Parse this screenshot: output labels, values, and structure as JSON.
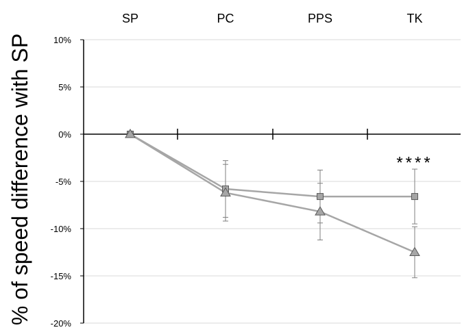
{
  "chart_data": {
    "type": "line",
    "categories": [
      "SP",
      "PC",
      "PPS",
      "TK"
    ],
    "ylabel": "% of speed difference with SP",
    "ylim": [
      -20,
      10
    ],
    "yticks": [
      10,
      5,
      0,
      -5,
      -10,
      -15,
      -20
    ],
    "ytick_labels": [
      "10%",
      "5%",
      "0%",
      "-5%",
      "-10%",
      "-15%",
      "-20%"
    ],
    "grid": true,
    "series": [
      {
        "marker": "square",
        "values": [
          0,
          -5.8,
          -6.6,
          -6.6
        ],
        "error": [
          0,
          3.0,
          2.8,
          2.9
        ]
      },
      {
        "marker": "triangle",
        "values": [
          0,
          -6.2,
          -8.2,
          -12.5
        ],
        "error": [
          0,
          3.0,
          3.0,
          2.7
        ]
      }
    ],
    "annotations": [
      {
        "category": "TK",
        "y": -3.0,
        "text": "****"
      }
    ],
    "colors": {
      "line": "#a6a6a6",
      "marker_fill": "#a6a6a6",
      "marker_stroke": "#595959",
      "error_bar": "#7f7f7f",
      "grid": "#d9d9d9",
      "axis": "#000000",
      "text": "#000000"
    }
  }
}
